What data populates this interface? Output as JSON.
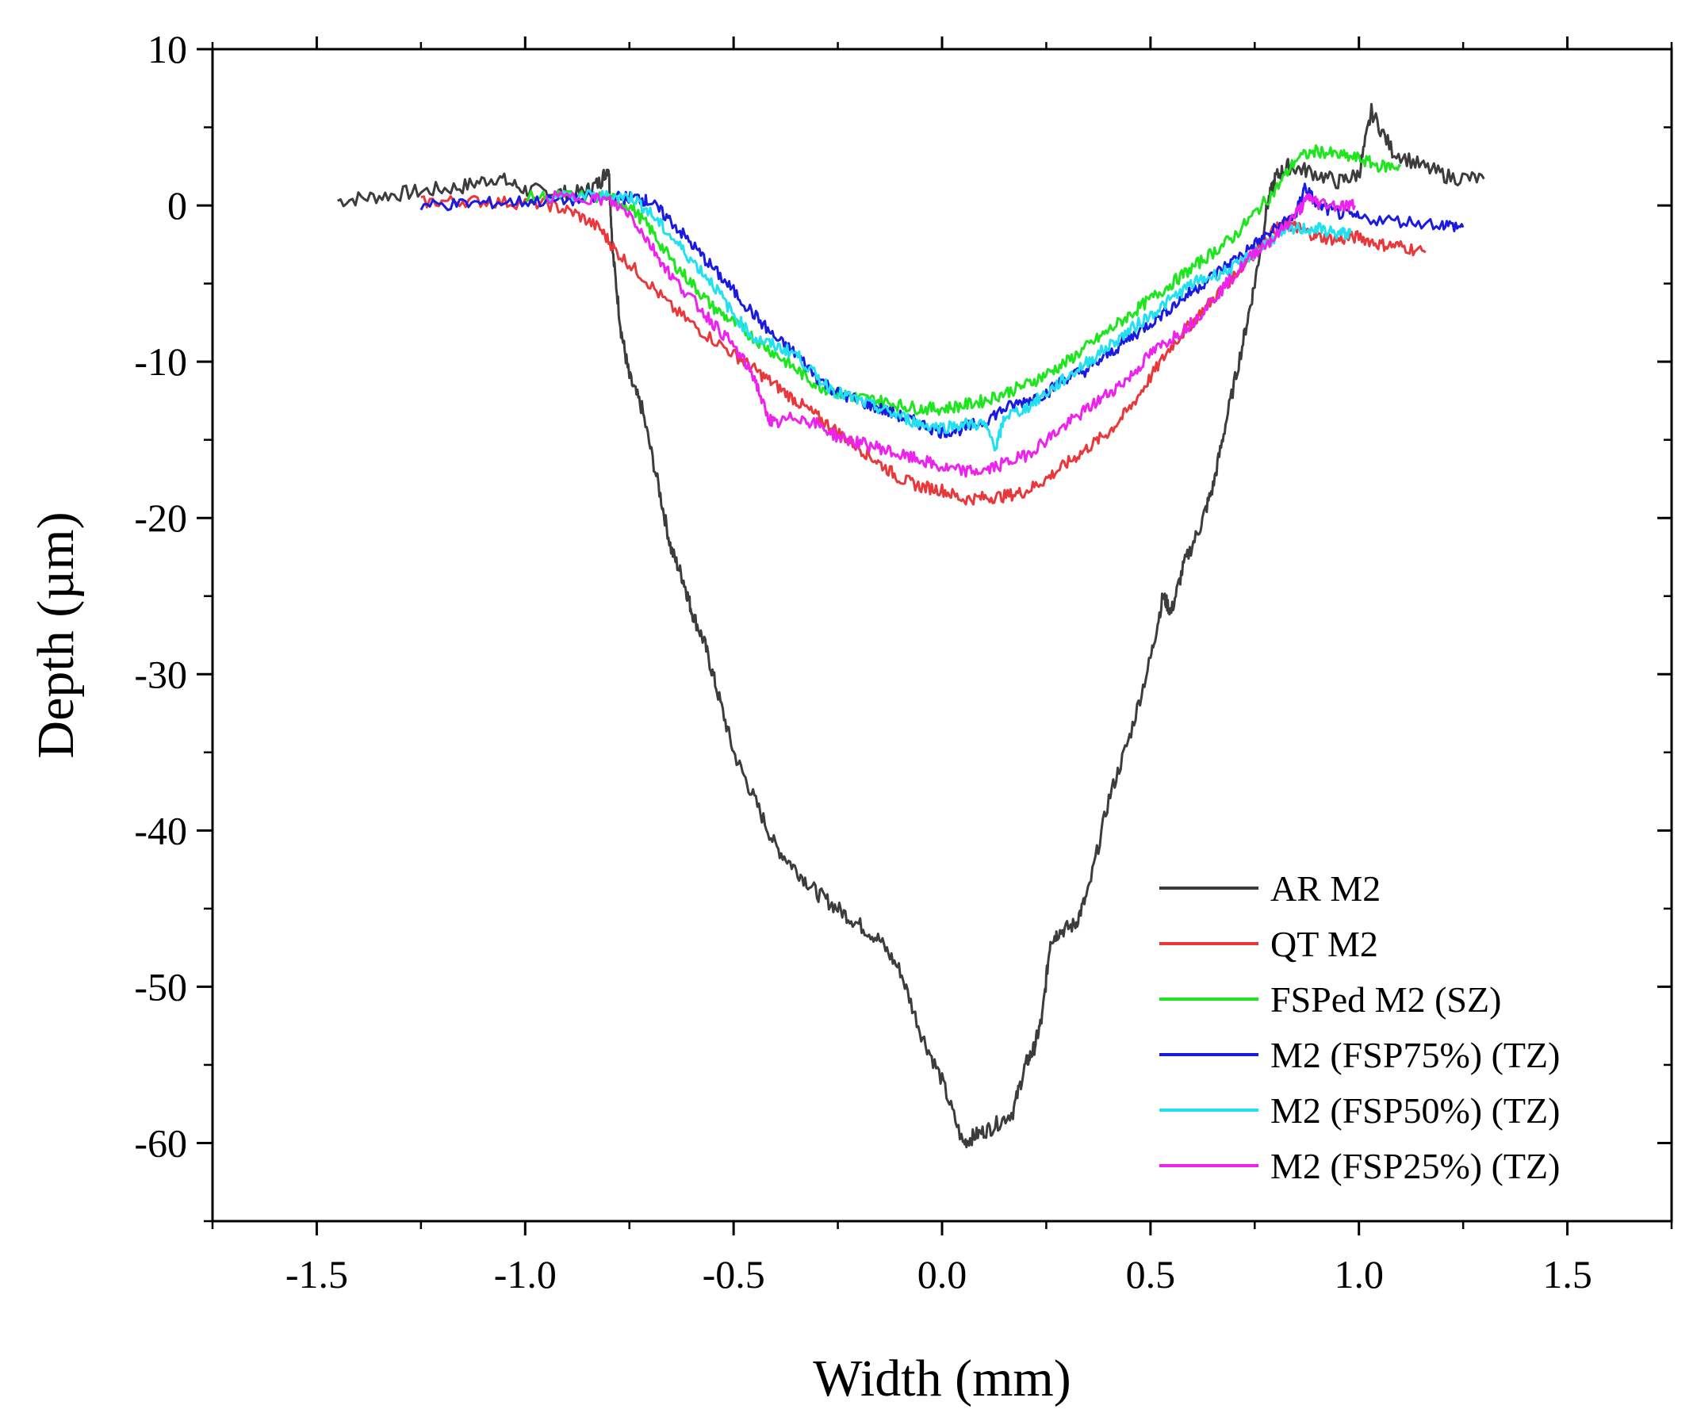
{
  "chart_data": {
    "type": "line",
    "title": "",
    "xlabel": "Width (mm)",
    "ylabel": "Depth (µm)",
    "xlim": [
      -1.75,
      1.75
    ],
    "ylim": [
      -65,
      10
    ],
    "x_ticks": [
      -1.5,
      -1.0,
      -0.5,
      0.0,
      0.5,
      1.0,
      1.5
    ],
    "x_tick_labels": [
      "-1.5",
      "-1.0",
      "-0.5",
      "0.0",
      "0.5",
      "1.0",
      "1.5"
    ],
    "y_ticks": [
      10,
      0,
      -10,
      -20,
      -30,
      -40,
      -50,
      -60
    ],
    "y_tick_labels": [
      "10",
      "0",
      "-10",
      "-20",
      "-30",
      "-40",
      "-50",
      "-60"
    ],
    "grid": false,
    "legend_position": "bottom-right",
    "series": [
      {
        "name": "AR M2",
        "color": "#3c3c3c",
        "x": [
          -1.45,
          -1.35,
          -1.25,
          -1.15,
          -1.07,
          -1.0,
          -0.93,
          -0.86,
          -0.82,
          -0.8,
          -0.79,
          -0.77,
          -0.75,
          -0.72,
          -0.68,
          -0.65,
          -0.62,
          -0.6,
          -0.57,
          -0.54,
          -0.5,
          -0.45,
          -0.4,
          -0.35,
          -0.3,
          -0.25,
          -0.2,
          -0.15,
          -0.1,
          -0.05,
          0.0,
          0.05,
          0.08,
          0.12,
          0.17,
          0.2,
          0.22,
          0.24,
          0.26,
          0.28,
          0.32,
          0.35,
          0.4,
          0.45,
          0.5,
          0.53,
          0.55,
          0.58,
          0.62,
          0.65,
          0.68,
          0.72,
          0.75,
          0.78,
          0.8,
          0.83,
          0.88,
          0.95,
          1.0,
          1.03,
          1.08,
          1.15,
          1.22,
          1.3
        ],
        "y": [
          0.3,
          0.6,
          0.9,
          1.2,
          1.8,
          1.0,
          0.8,
          0.8,
          1.5,
          2.5,
          -3.0,
          -8.0,
          -11.0,
          -13.0,
          -18.0,
          -22.0,
          -24.0,
          -26.0,
          -28.0,
          -31.0,
          -35.0,
          -38.0,
          -41.0,
          -42.5,
          -44.0,
          -45.0,
          -46.0,
          -47.0,
          -49.0,
          -53.0,
          -56.0,
          -60.0,
          -59.5,
          -59.0,
          -58.0,
          -55.0,
          -54.0,
          -52.0,
          -47.0,
          -46.5,
          -46.0,
          -44.0,
          -38.0,
          -34.0,
          -29.0,
          -25.0,
          -26.0,
          -23.0,
          -20.5,
          -18.0,
          -14.0,
          -9.0,
          -5.0,
          0.0,
          1.8,
          2.5,
          2.2,
          1.5,
          2.0,
          6.0,
          3.5,
          2.5,
          1.8,
          1.7
        ]
      },
      {
        "name": "QT M2",
        "color": "#e8383c",
        "x": [
          -1.25,
          -1.15,
          -1.05,
          -0.95,
          -0.88,
          -0.82,
          -0.78,
          -0.72,
          -0.65,
          -0.58,
          -0.5,
          -0.45,
          -0.4,
          -0.35,
          -0.3,
          -0.25,
          -0.2,
          -0.15,
          -0.1,
          -0.05,
          0.0,
          0.05,
          0.1,
          0.15,
          0.2,
          0.25,
          0.3,
          0.35,
          0.4,
          0.45,
          0.5,
          0.55,
          0.6,
          0.65,
          0.7,
          0.75,
          0.8,
          0.83,
          0.86,
          0.9,
          0.95,
          1.0,
          1.05,
          1.1,
          1.16
        ],
        "y": [
          0.2,
          0.3,
          0.2,
          0.1,
          -0.5,
          -1.5,
          -3.0,
          -4.5,
          -6.5,
          -8.0,
          -9.5,
          -10.5,
          -11.5,
          -12.5,
          -13.5,
          -14.5,
          -15.5,
          -16.5,
          -17.5,
          -18.0,
          -18.2,
          -18.8,
          -18.7,
          -18.6,
          -18.3,
          -17.5,
          -16.5,
          -15.5,
          -14.5,
          -13.0,
          -11.0,
          -9.0,
          -7.5,
          -6.0,
          -4.5,
          -3.0,
          -1.5,
          -1.2,
          -1.5,
          -2.0,
          -2.2,
          -2.0,
          -2.5,
          -2.6,
          -3.0
        ]
      },
      {
        "name": "FSPed M2  (SZ)",
        "color": "#1ee61e",
        "x": [
          -1.0,
          -0.9,
          -0.8,
          -0.75,
          -0.7,
          -0.65,
          -0.6,
          -0.55,
          -0.5,
          -0.45,
          -0.4,
          -0.35,
          -0.3,
          -0.25,
          -0.2,
          -0.15,
          -0.1,
          -0.05,
          0.0,
          0.05,
          0.1,
          0.15,
          0.2,
          0.25,
          0.3,
          0.35,
          0.4,
          0.45,
          0.5,
          0.55,
          0.6,
          0.65,
          0.7,
          0.75,
          0.8,
          0.85,
          0.9,
          0.95,
          1.0,
          1.05,
          1.1
        ],
        "y": [
          0.5,
          0.6,
          0.5,
          0.0,
          -1.5,
          -3.5,
          -5.0,
          -6.5,
          -7.5,
          -8.5,
          -9.5,
          -10.5,
          -11.5,
          -12.0,
          -12.3,
          -12.5,
          -12.8,
          -13.0,
          -13.0,
          -12.8,
          -12.5,
          -12.0,
          -11.5,
          -10.8,
          -10.0,
          -9.0,
          -8.0,
          -7.0,
          -6.0,
          -5.0,
          -4.0,
          -3.0,
          -2.0,
          -0.5,
          1.0,
          3.0,
          3.5,
          3.2,
          3.0,
          2.5,
          2.5
        ]
      },
      {
        "name": "M2 (FSP75%) (TZ)",
        "color": "#1a1ae0",
        "x": [
          -1.25,
          -1.15,
          -1.05,
          -0.95,
          -0.85,
          -0.78,
          -0.73,
          -0.7,
          -0.65,
          -0.6,
          -0.55,
          -0.5,
          -0.45,
          -0.4,
          -0.35,
          -0.3,
          -0.25,
          -0.2,
          -0.15,
          -0.1,
          -0.05,
          0.0,
          0.05,
          0.1,
          0.15,
          0.2,
          0.25,
          0.3,
          0.35,
          0.4,
          0.45,
          0.5,
          0.55,
          0.6,
          0.65,
          0.7,
          0.75,
          0.8,
          0.85,
          0.87,
          0.9,
          0.95,
          1.0,
          1.1,
          1.2,
          1.25
        ],
        "y": [
          0.0,
          0.1,
          0.2,
          0.3,
          0.4,
          0.5,
          0.5,
          0.2,
          -1.0,
          -2.5,
          -4.0,
          -5.5,
          -7.0,
          -8.5,
          -9.5,
          -11.0,
          -12.0,
          -12.5,
          -13.0,
          -13.5,
          -14.0,
          -14.5,
          -14.3,
          -13.8,
          -13.0,
          -12.5,
          -12.0,
          -11.0,
          -10.5,
          -9.5,
          -8.5,
          -7.5,
          -6.5,
          -5.5,
          -4.5,
          -3.5,
          -2.5,
          -1.5,
          -0.5,
          1.2,
          0.0,
          -0.5,
          -0.8,
          -1.0,
          -1.2,
          -1.4
        ]
      },
      {
        "name": "M2 (FSP50%) (TZ)",
        "color": "#22e0f0",
        "x": [
          -0.95,
          -0.85,
          -0.78,
          -0.74,
          -0.7,
          -0.65,
          -0.6,
          -0.55,
          -0.5,
          -0.45,
          -0.4,
          -0.35,
          -0.3,
          -0.25,
          -0.2,
          -0.15,
          -0.1,
          -0.05,
          0.0,
          0.05,
          0.1,
          0.13,
          0.15,
          0.2,
          0.25,
          0.3,
          0.35,
          0.4,
          0.45,
          0.5,
          0.55,
          0.6,
          0.65,
          0.7,
          0.75,
          0.8,
          0.85,
          0.9,
          0.95,
          0.98
        ],
        "y": [
          0.5,
          0.6,
          0.6,
          0.5,
          -0.5,
          -2.0,
          -3.5,
          -5.0,
          -7.0,
          -8.5,
          -9.0,
          -9.5,
          -11.0,
          -12.0,
          -12.5,
          -13.0,
          -13.5,
          -14.0,
          -14.2,
          -14.0,
          -14.0,
          -15.5,
          -13.5,
          -13.0,
          -12.0,
          -11.0,
          -10.0,
          -9.0,
          -8.0,
          -7.0,
          -6.0,
          -5.0,
          -4.5,
          -4.0,
          -3.0,
          -2.0,
          -1.5,
          -1.5,
          -1.8,
          -1.8
        ]
      },
      {
        "name": "M2 (FSP25%) (TZ)",
        "color": "#ee22ee",
        "x": [
          -0.95,
          -0.85,
          -0.8,
          -0.75,
          -0.7,
          -0.65,
          -0.6,
          -0.55,
          -0.5,
          -0.45,
          -0.42,
          -0.4,
          -0.35,
          -0.3,
          -0.25,
          -0.2,
          -0.15,
          -0.1,
          -0.05,
          0.0,
          0.05,
          0.1,
          0.15,
          0.2,
          0.25,
          0.3,
          0.35,
          0.4,
          0.45,
          0.5,
          0.55,
          0.6,
          0.65,
          0.7,
          0.75,
          0.8,
          0.85,
          0.88,
          0.9,
          0.95,
          0.99
        ],
        "y": [
          0.5,
          0.5,
          0.3,
          -0.5,
          -2.5,
          -4.5,
          -6.0,
          -7.5,
          -9.0,
          -11.0,
          -13.5,
          -14.0,
          -13.5,
          -14.0,
          -14.8,
          -15.2,
          -15.5,
          -16.0,
          -16.3,
          -16.8,
          -17.0,
          -17.0,
          -16.5,
          -16.0,
          -15.0,
          -14.0,
          -13.0,
          -12.0,
          -11.0,
          -9.5,
          -8.5,
          -7.5,
          -6.0,
          -4.5,
          -3.0,
          -2.0,
          -0.5,
          0.5,
          0.2,
          0.0,
          0.0
        ]
      }
    ]
  }
}
